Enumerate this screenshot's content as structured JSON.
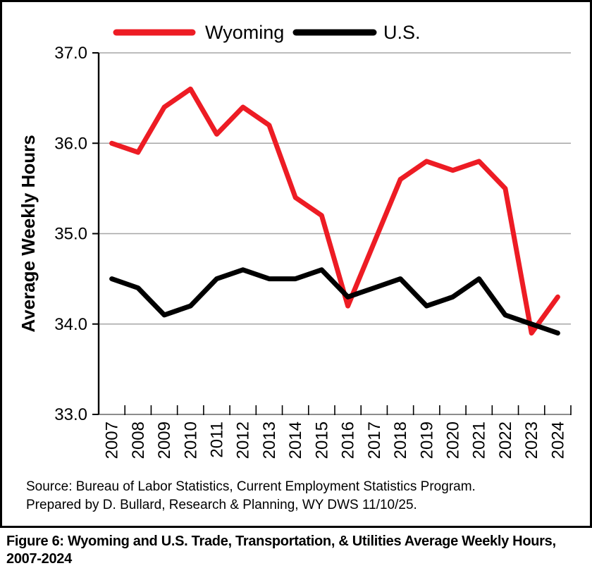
{
  "chart_data": {
    "type": "line",
    "title": "",
    "xlabel": "",
    "ylabel": "Average Weekly Hours",
    "categories": [
      "2007",
      "2008",
      "2009",
      "2010",
      "2011",
      "2012",
      "2013",
      "2014",
      "2015",
      "2016",
      "2017",
      "2018",
      "2019",
      "2020",
      "2021",
      "2022",
      "2023",
      "2024"
    ],
    "series": [
      {
        "name": "Wyoming",
        "color": "#ED1C24",
        "values": [
          36.0,
          35.9,
          36.4,
          36.6,
          36.1,
          36.4,
          36.2,
          35.4,
          35.2,
          34.2,
          34.9,
          35.6,
          35.8,
          35.7,
          35.8,
          35.5,
          33.9,
          34.3
        ]
      },
      {
        "name": "U.S.",
        "color": "#000000",
        "values": [
          34.5,
          34.4,
          34.1,
          34.2,
          34.5,
          34.6,
          34.5,
          34.5,
          34.6,
          34.3,
          34.4,
          34.5,
          34.2,
          34.3,
          34.5,
          34.1,
          34.0,
          33.9
        ]
      }
    ],
    "ylim": [
      33.0,
      37.0
    ],
    "yticks": [
      33.0,
      34.0,
      35.0,
      36.0,
      37.0
    ],
    "grid": true,
    "gridline_color": "#a6a6a6",
    "legend_position": "top"
  },
  "source": {
    "line1": "Source: Bureau of Labor Statistics, Current Employment Statistics Program.",
    "line2": "Prepared by D. Bullard, Research & Planning, WY DWS 11/10/25."
  },
  "caption": {
    "text": "Figure 6: Wyoming and U.S. Trade, Transportation, & Utilities Average Weekly Hours, 2007-2024"
  }
}
